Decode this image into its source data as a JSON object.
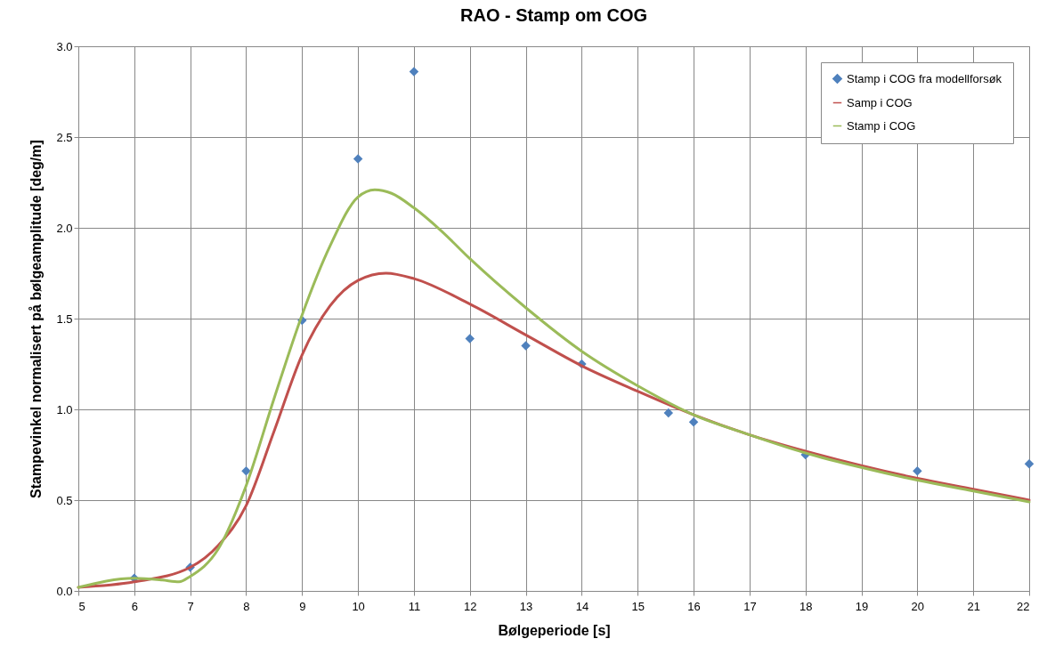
{
  "chart_data": {
    "type": "line",
    "title": "RAO - Stamp om COG",
    "xlabel": "Bølgeperiode [s]",
    "ylabel": "Stampevinkel normalisert på bølgeamplitude [deg/m]",
    "xlim": [
      5,
      22
    ],
    "xticks": [
      5,
      6,
      7,
      8,
      9,
      10,
      11,
      12,
      13,
      14,
      15,
      16,
      17,
      18,
      19,
      20,
      21,
      22
    ],
    "ylim": [
      0,
      3
    ],
    "yticks": [
      {
        "value": 0,
        "label": "0.0"
      },
      0.5,
      {
        "value": 1,
        "label": "1.0"
      },
      1.5,
      {
        "value": 2,
        "label": "2.0"
      },
      2.5,
      {
        "value": 3,
        "label": "3.0"
      }
    ],
    "grid": true,
    "legend": "top right",
    "line_style": "solid",
    "series": [
      {
        "name": "Stamp i COG fra modellforsøk",
        "type": "scatter",
        "marker": "diamond",
        "color": "#4f81bd",
        "x": [
          6,
          7,
          8,
          9,
          10,
          11,
          12,
          13,
          14,
          15.55,
          16,
          18,
          20,
          22
        ],
        "values": [
          0.07,
          0.13,
          0.66,
          1.49,
          2.38,
          2.86,
          1.39,
          1.35,
          1.25,
          0.98,
          0.93,
          0.75,
          0.66,
          0.7
        ]
      },
      {
        "name": "Samp i COG",
        "type": "line",
        "marker": "none",
        "color": "#c0504d",
        "x": [
          5,
          6,
          7,
          7.5,
          8,
          8.5,
          9,
          9.5,
          10,
          10.5,
          11,
          12,
          13,
          14,
          15,
          16,
          17,
          18,
          19,
          20,
          21,
          22
        ],
        "values": [
          0.02,
          0.05,
          0.13,
          0.25,
          0.47,
          0.88,
          1.3,
          1.57,
          1.71,
          1.75,
          1.72,
          1.58,
          1.41,
          1.24,
          1.1,
          0.97,
          0.86,
          0.77,
          0.69,
          0.62,
          0.56,
          0.5
        ]
      },
      {
        "name": "Stamp i COG",
        "type": "line",
        "marker": "none",
        "color": "#9bbb59",
        "x": [
          5,
          6,
          6.5,
          6.8,
          7,
          7.5,
          8,
          8.5,
          9,
          9.5,
          10,
          10.3,
          10.6,
          11,
          11.5,
          12,
          13,
          14,
          15,
          16,
          17,
          18,
          19,
          20,
          21,
          22
        ],
        "values": [
          0.02,
          0.07,
          0.06,
          0.05,
          0.08,
          0.23,
          0.58,
          1.06,
          1.52,
          1.9,
          2.17,
          2.21,
          2.19,
          2.11,
          1.98,
          1.83,
          1.56,
          1.32,
          1.13,
          0.97,
          0.86,
          0.76,
          0.68,
          0.61,
          0.55,
          0.49
        ]
      }
    ]
  }
}
